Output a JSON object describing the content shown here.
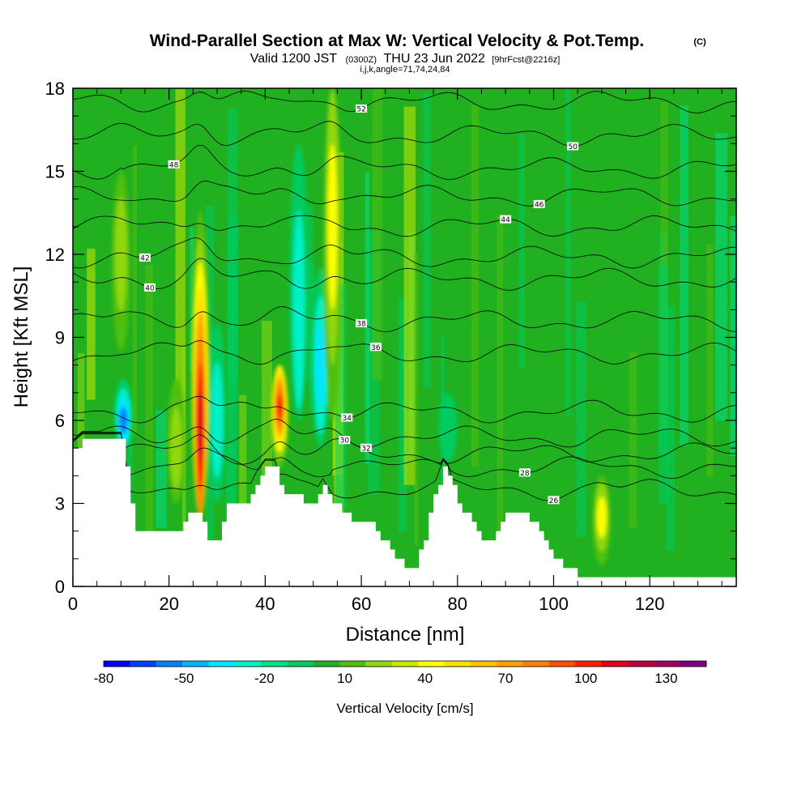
{
  "title": {
    "main": "Wind-Parallel Section at Max W: Vertical Velocity & Pot.Temp.",
    "copyright": "(C)",
    "line2_part1": "Valid 1200 JST",
    "line2_part2": "(0300Z)",
    "line2_part3": "THU 23 Jun 2022",
    "line2_part4": "[9hrFcst@2216z]",
    "line3": "i,j,k,angle=71,74,24,84"
  },
  "chart_data": {
    "type": "heatmap",
    "x_axis": {
      "label": "Distance [nm]",
      "range": [
        0,
        138
      ],
      "ticks": [
        "0",
        "20",
        "40",
        "60",
        "80",
        "100",
        "120"
      ]
    },
    "y_axis": {
      "label": "Height [Kft MSL]",
      "range": [
        0,
        18
      ],
      "ticks": [
        "0",
        "3",
        "6",
        "9",
        "12",
        "15",
        "18"
      ]
    },
    "colorbar": {
      "label": "Vertical Velocity [cm/s]",
      "tick_labels": [
        "-80",
        "-50",
        "-20",
        "10",
        "40",
        "70",
        "100",
        "130"
      ],
      "tick_values": [
        -80,
        -50,
        -20,
        10,
        40,
        70,
        100,
        130
      ],
      "range": [
        -80,
        145
      ],
      "colors": [
        "#0000ff",
        "#0040ff",
        "#0080ff",
        "#00b4ff",
        "#00e6ff",
        "#00f0c8",
        "#00e08c",
        "#00cc60",
        "#20b020",
        "#50c010",
        "#90d810",
        "#c8e800",
        "#ffff00",
        "#ffe000",
        "#ffc000",
        "#ffa000",
        "#ff8000",
        "#ff5000",
        "#ff2000",
        "#e00020",
        "#c00040",
        "#a00060",
        "#800080"
      ]
    },
    "background_value_cm_s": 5,
    "updrafts": [
      {
        "x": 26.5,
        "y_bottom": 2.5,
        "y_top": 18,
        "peak_cm_s": 120,
        "core_height": 5.8
      },
      {
        "x": 43,
        "y_bottom": 3.5,
        "y_top": 8,
        "peak_cm_s": 100,
        "core_height": 6.5
      },
      {
        "x": 54,
        "y_bottom": 4,
        "y_top": 18,
        "peak_cm_s": 45,
        "core_height": 13
      },
      {
        "x": 110,
        "y_bottom": 0.5,
        "y_top": 4,
        "peak_cm_s": 40,
        "core_height": 2.5
      },
      {
        "x": 21.5,
        "y_bottom": 3,
        "y_top": 8,
        "peak_cm_s": 35,
        "core_height": 5
      },
      {
        "x": 10,
        "y_bottom": 8,
        "y_top": 15,
        "peak_cm_s": 30,
        "core_height": 12
      }
    ],
    "downdrafts": [
      {
        "x": 10.5,
        "y_bottom": 5,
        "y_top": 8,
        "peak_cm_s": -60,
        "core_height": 6
      },
      {
        "x": 30,
        "y_bottom": 3,
        "y_top": 10,
        "peak_cm_s": -30,
        "core_height": 6
      },
      {
        "x": 51.5,
        "y_bottom": 5,
        "y_top": 12,
        "peak_cm_s": -45,
        "core_height": 8
      },
      {
        "x": 47,
        "y_bottom": 6,
        "y_top": 18,
        "peak_cm_s": -25,
        "core_height": 10
      },
      {
        "x": 78,
        "y_bottom": 4,
        "y_top": 7,
        "peak_cm_s": -15,
        "core_height": 6
      }
    ],
    "terrain_kft": [
      [
        0,
        5
      ],
      [
        2,
        5.3
      ],
      [
        10,
        5.3
      ],
      [
        11,
        4.2
      ],
      [
        12,
        3
      ],
      [
        13,
        2
      ],
      [
        22,
        2
      ],
      [
        24,
        2.6
      ],
      [
        26,
        2.6
      ],
      [
        27,
        2.2
      ],
      [
        28,
        1.6
      ],
      [
        30,
        1.6
      ],
      [
        31,
        2.3
      ],
      [
        32,
        3
      ],
      [
        36,
        3
      ],
      [
        38,
        3.8
      ],
      [
        40,
        4.3
      ],
      [
        42,
        4.3
      ],
      [
        43,
        3.7
      ],
      [
        44,
        3.3
      ],
      [
        47,
        3.3
      ],
      [
        49,
        3
      ],
      [
        51,
        3.3
      ],
      [
        52,
        3.6
      ],
      [
        54,
        3
      ],
      [
        57,
        2.6
      ],
      [
        58,
        2.2
      ],
      [
        60,
        2.2
      ],
      [
        62,
        2.2
      ],
      [
        65,
        1.6
      ],
      [
        67,
        1.1
      ],
      [
        69,
        0.6
      ],
      [
        71,
        0.8
      ],
      [
        73,
        1.7
      ],
      [
        75,
        3.3
      ],
      [
        77,
        4.3
      ],
      [
        78,
        4.1
      ],
      [
        80,
        3.1
      ],
      [
        83,
        2.2
      ],
      [
        85,
        1.6
      ],
      [
        87,
        1.6
      ],
      [
        89,
        2.3
      ],
      [
        91,
        2.7
      ],
      [
        94,
        2.7
      ],
      [
        96,
        2.2
      ],
      [
        98,
        1.6
      ],
      [
        100,
        1.1
      ],
      [
        102,
        0.6
      ],
      [
        104,
        0.6
      ],
      [
        105,
        0.3
      ],
      [
        138,
        0.3
      ]
    ],
    "theta_contours": [
      {
        "value": 26,
        "base_kft": 3.5,
        "label_x": 100
      },
      {
        "value": 28,
        "base_kft": 4.3,
        "label_x": 94
      },
      {
        "value": 30,
        "base_kft": 4.8,
        "label_x": 56.5
      },
      {
        "value": 32,
        "base_kft": 5.4,
        "label_x": 61
      },
      {
        "value": 34,
        "base_kft": 6.3,
        "label_x": 57
      },
      {
        "value": 36,
        "base_kft": 8.4,
        "label_x": 63
      },
      {
        "value": 38,
        "base_kft": 9.6,
        "label_x": 60
      },
      {
        "value": 40,
        "base_kft": 11.1,
        "label_x": 16
      },
      {
        "value": 42,
        "base_kft": 11.9,
        "label_x": 15
      },
      {
        "value": 44,
        "base_kft": 13.0,
        "label_x": 90
      },
      {
        "value": 46,
        "base_kft": 14.1,
        "label_x": 97
      },
      {
        "value": 48,
        "base_kft": 15.1,
        "label_x": 21
      },
      {
        "value": 50,
        "base_kft": 16.3,
        "label_x": 104
      },
      {
        "value": 52,
        "base_kft": 17.5,
        "label_x": 60
      }
    ]
  }
}
